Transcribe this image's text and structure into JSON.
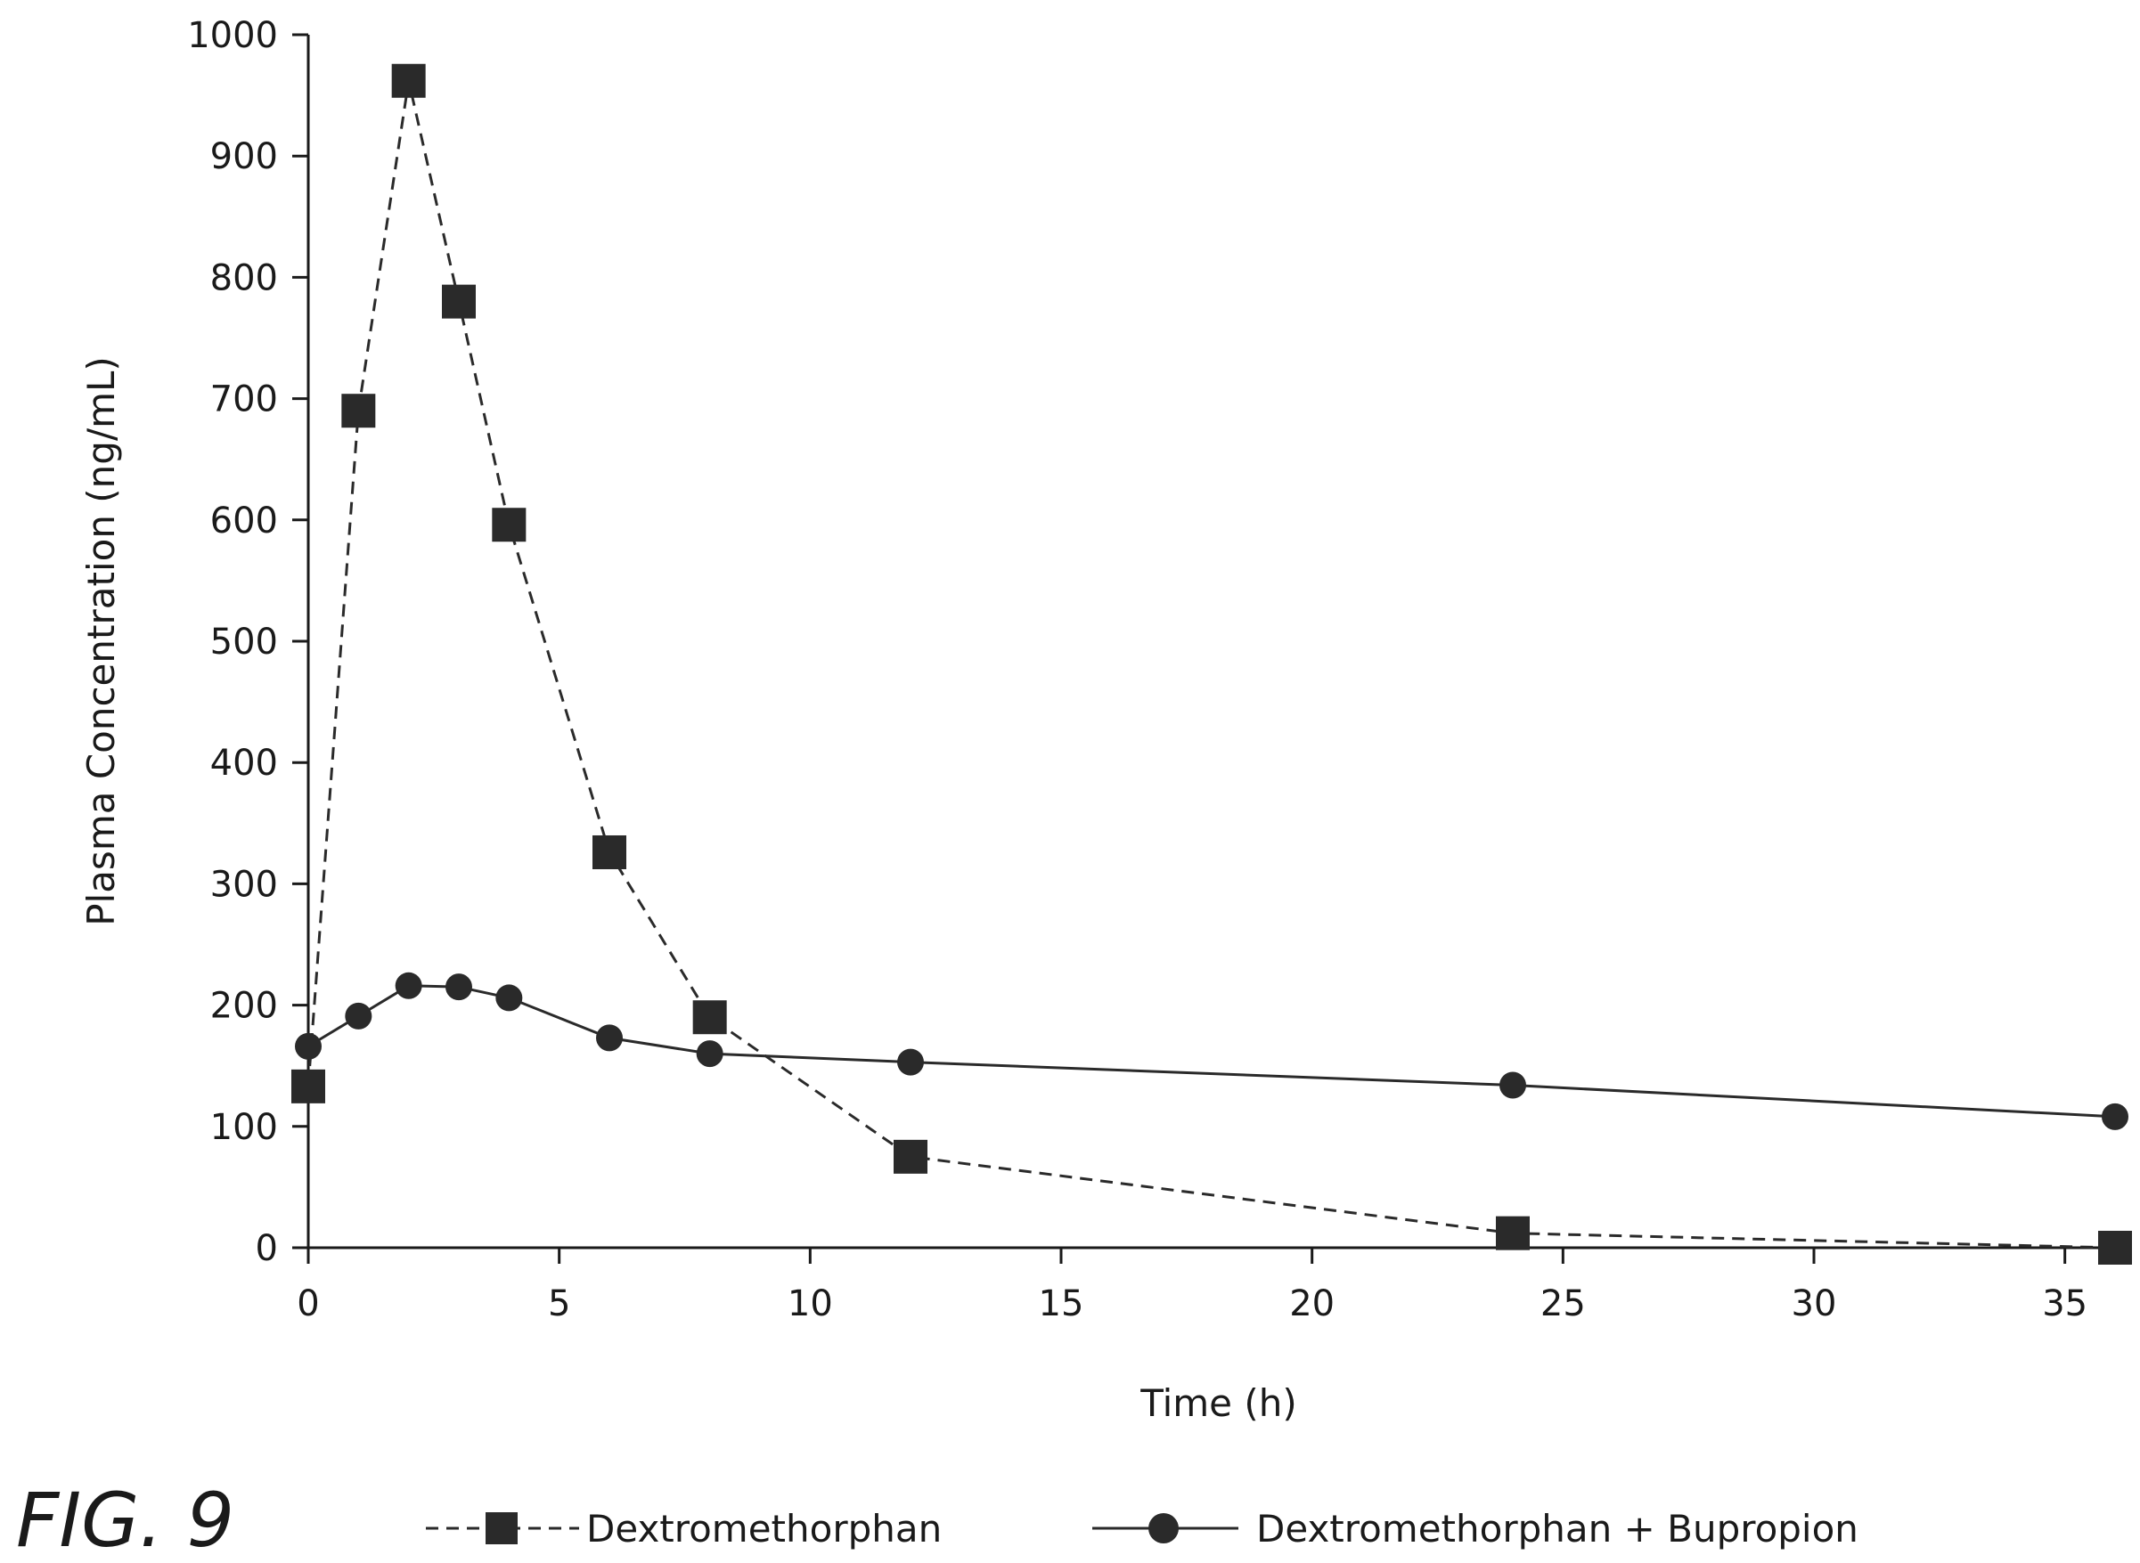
{
  "figure_label": "FIG. 9",
  "chart_data": {
    "type": "line",
    "xlabel": "Time (h)",
    "ylabel": "Plasma Concentration (ng/mL)",
    "xlim": [
      0,
      36
    ],
    "ylim": [
      0,
      1000
    ],
    "x_ticks": [
      0,
      5,
      10,
      15,
      20,
      25,
      30,
      35
    ],
    "y_ticks": [
      0,
      100,
      200,
      300,
      400,
      500,
      600,
      700,
      800,
      900,
      1000
    ],
    "grid": false,
    "legend_position": "bottom",
    "series": [
      {
        "name": "Dextromethorphan",
        "marker": "square",
        "line_style": "dashed",
        "color": "#2a2a2a",
        "x": [
          0,
          1,
          2,
          3,
          4,
          6,
          8,
          12,
          24,
          36
        ],
        "y": [
          133,
          690,
          962,
          780,
          596,
          326,
          190,
          75,
          12,
          0
        ]
      },
      {
        "name": "Dextromethorphan + Bupropion",
        "marker": "circle",
        "line_style": "solid",
        "color": "#2a2a2a",
        "x": [
          0,
          1,
          2,
          3,
          4,
          6,
          8,
          12,
          24,
          36
        ],
        "y": [
          166,
          191,
          216,
          215,
          206,
          173,
          160,
          153,
          134,
          108
        ]
      }
    ]
  }
}
